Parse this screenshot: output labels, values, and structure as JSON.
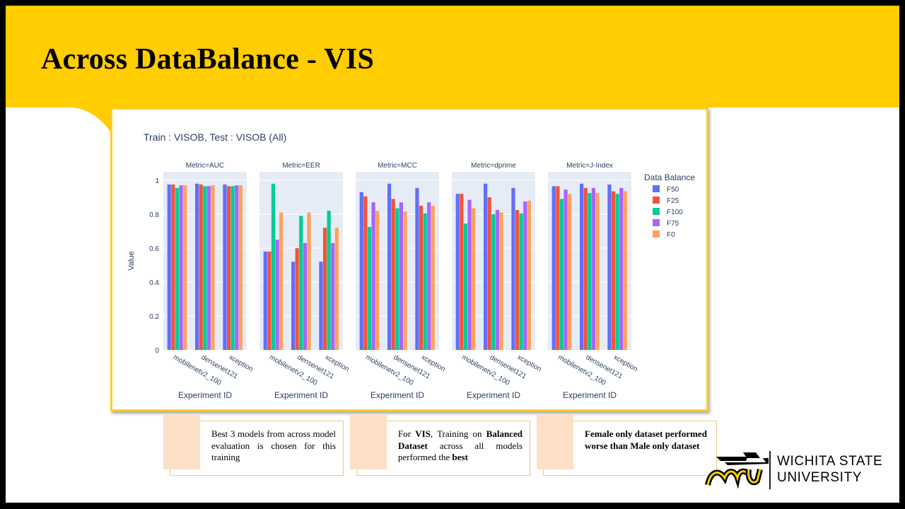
{
  "slide": {
    "title": "Across DataBalance - VIS",
    "notes": [
      {
        "text_before": "Best 3 models from across model evaluation is chosen for this training",
        "bold": "",
        "text_after": ""
      },
      {
        "text_before": "For ",
        "bold": "VIS",
        "text_after": ", Training on ",
        "bold2": "Balanced Dataset",
        "text_after2": " across all models performed the ",
        "bold3": "best"
      },
      {
        "text_before": "",
        "bold": "Female only dataset performed worse than Male only dataset",
        "text_after": ""
      }
    ],
    "logo": {
      "mark": "wsu",
      "line1": "WICHITA STATE",
      "line2": "UNIVERSITY"
    }
  },
  "chart_data": {
    "type": "bar",
    "title": "Train : VISOB, Test : VISOB (All)",
    "ylabel": "Value",
    "xlabel": "Experiment ID",
    "ylim": [
      0,
      1.05
    ],
    "yticks": [
      0,
      0.2,
      0.4,
      0.6,
      0.8,
      1
    ],
    "ytick_labels": [
      "0",
      "0.2",
      "0.4",
      "0.6",
      "0.8",
      "1"
    ],
    "categories": [
      "mobilenetv2_100",
      "densenet121",
      "xception"
    ],
    "legend_title": "Data Balance",
    "legend_position": "right",
    "grid": true,
    "series_names": [
      "F50",
      "F25",
      "F100",
      "F75",
      "F0"
    ],
    "colors": [
      "#636efa",
      "#ef553b",
      "#00cc96",
      "#ab63fa",
      "#ffa15a"
    ],
    "panels": [
      {
        "title": "Metric=AUC",
        "values": [
          [
            0.975,
            0.975,
            0.955,
            0.97,
            0.97
          ],
          [
            0.98,
            0.975,
            0.965,
            0.965,
            0.97
          ],
          [
            0.975,
            0.965,
            0.965,
            0.97,
            0.97
          ]
        ]
      },
      {
        "title": "Metric=EER",
        "values": [
          [
            0.58,
            0.58,
            0.98,
            0.65,
            0.81
          ],
          [
            0.52,
            0.6,
            0.79,
            0.63,
            0.81
          ],
          [
            0.52,
            0.72,
            0.82,
            0.63,
            0.72
          ]
        ]
      },
      {
        "title": "Metric=MCC",
        "values": [
          [
            0.93,
            0.905,
            0.725,
            0.87,
            0.82
          ],
          [
            0.98,
            0.89,
            0.835,
            0.87,
            0.815
          ],
          [
            0.955,
            0.85,
            0.805,
            0.87,
            0.85
          ]
        ]
      },
      {
        "title": "Metric=dprime",
        "values": [
          [
            0.92,
            0.92,
            0.745,
            0.885,
            0.835
          ],
          [
            0.98,
            0.9,
            0.8,
            0.825,
            0.81
          ],
          [
            0.955,
            0.825,
            0.805,
            0.875,
            0.88
          ]
        ]
      },
      {
        "title": "Metric=J-Index",
        "values": [
          [
            0.965,
            0.965,
            0.89,
            0.945,
            0.92
          ],
          [
            0.98,
            0.955,
            0.925,
            0.955,
            0.925
          ],
          [
            0.975,
            0.935,
            0.92,
            0.955,
            0.935
          ]
        ]
      }
    ]
  }
}
